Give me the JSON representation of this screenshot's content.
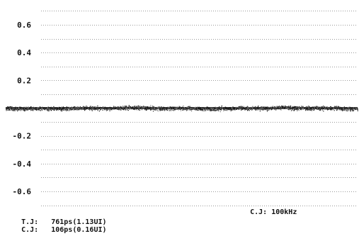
{
  "chart_data": {
    "type": "scatter",
    "title": "",
    "xlabel": "",
    "ylabel": "",
    "ylim": [
      -0.7,
      0.7
    ],
    "y_ticks": [
      0.6,
      0.4,
      0.2,
      -0.2,
      -0.4,
      -0.6
    ],
    "y_tick_labels": [
      "0.6",
      "0.4",
      "0.2",
      "-0.2",
      "-0.4",
      "-0.6"
    ],
    "grid": true,
    "trace": {
      "center_value": 0.0,
      "spread": 0.02,
      "color": "#1a1a1a"
    }
  },
  "readouts": {
    "clock_jitter_bandwidth": {
      "label": "C.J:",
      "value": "100kHz"
    },
    "total_jitter": {
      "label": "T.J:",
      "value": "761ps(1.13UI)"
    },
    "clock_jitter": {
      "label": "C.J:",
      "value": "106ps(0.16UI)"
    }
  },
  "colors": {
    "background": "#ffffff",
    "grid": "#9a9a9a",
    "text": "#111111",
    "trace": "#1a1a1a"
  }
}
